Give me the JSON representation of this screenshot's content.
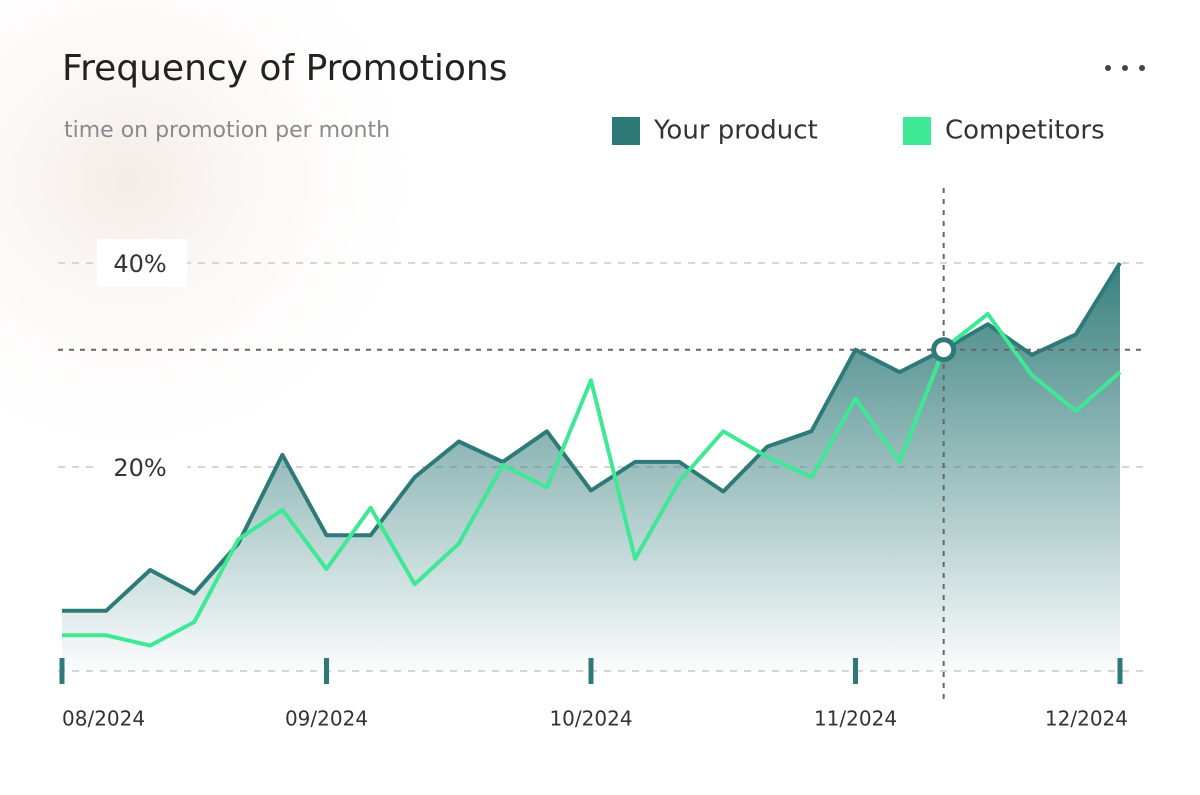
{
  "chart_data": {
    "type": "line",
    "title": "Frequency of Promotions",
    "subtitle": "time on promotion per month",
    "categories": [
      "08/2024",
      null,
      null,
      null,
      null,
      null,
      "09/2024",
      null,
      null,
      null,
      null,
      null,
      "10/2024",
      null,
      null,
      null,
      null,
      null,
      "11/2024",
      null,
      null,
      null,
      null,
      null,
      "12/2024"
    ],
    "series": [
      {
        "name": "Your product",
        "color": "#2e7a78",
        "fill": "area",
        "values": [
          5.9,
          5.9,
          9.9,
          7.6,
          12.5,
          21.2,
          13.3,
          13.3,
          19,
          22.5,
          20.5,
          23.5,
          17.7,
          20.5,
          20.5,
          17.6,
          22,
          23.5,
          31.5,
          29.3,
          31.5,
          34,
          31,
          33,
          40
        ]
      },
      {
        "name": "Competitors",
        "color": "#3ee895",
        "values": [
          3.5,
          3.5,
          2.5,
          4.8,
          12.9,
          15.8,
          10,
          16,
          8.5,
          12.5,
          20.2,
          18,
          28.5,
          11,
          18.6,
          23.5,
          21,
          19,
          26.7,
          20.5,
          31.6,
          35,
          29,
          25.5,
          29.3
        ]
      }
    ],
    "ylim": [
      0,
      40
    ],
    "yticks": [
      {
        "value": 20,
        "label": "20%"
      },
      {
        "value": 40,
        "label": "40%"
      }
    ],
    "grid": true,
    "highlight_index": 20
  }
}
